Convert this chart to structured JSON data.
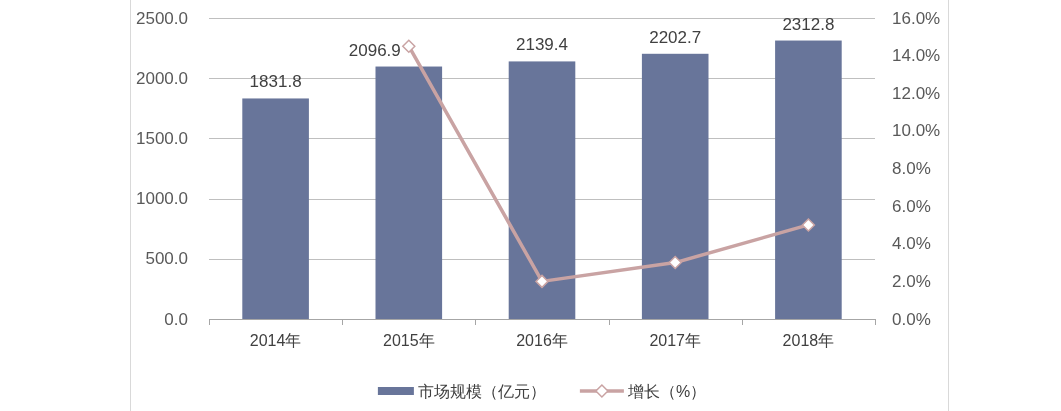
{
  "chart_data": {
    "type": "bar",
    "categories": [
      "2014年",
      "2015年",
      "2016年",
      "2017年",
      "2018年"
    ],
    "series": [
      {
        "name": "市场规模（亿元）",
        "color": "#68759a",
        "values": [
          1831.8,
          2096.9,
          2139.4,
          2202.7,
          2312.8
        ],
        "value_labels": [
          "1831.8",
          "2096.9",
          "2139.4",
          "2202.7",
          "2312.8"
        ]
      },
      {
        "name": "增长（%）",
        "type": "line",
        "axis": "y2",
        "color": "#c9a3a3",
        "marker": "diamond",
        "values": [
          null,
          14.5,
          2.0,
          3.0,
          5.0
        ]
      }
    ],
    "ylim": [
      0,
      2500
    ],
    "yticks": [
      {
        "value": 0,
        "label": "0.0"
      },
      {
        "value": 500,
        "label": "500.0"
      },
      {
        "value": 1000,
        "label": "1000.0"
      },
      {
        "value": 1500,
        "label": "1500.0"
      },
      {
        "value": 2000,
        "label": "2000.0"
      },
      {
        "value": 2500,
        "label": "2500.0"
      }
    ],
    "y2lim": [
      0,
      16
    ],
    "y2ticks": [
      {
        "value": 0,
        "label": "0.0%"
      },
      {
        "value": 2,
        "label": "2.0%"
      },
      {
        "value": 4,
        "label": "4.0%"
      },
      {
        "value": 6,
        "label": "6.0%"
      },
      {
        "value": 8,
        "label": "8.0%"
      },
      {
        "value": 10,
        "label": "10.0%"
      },
      {
        "value": 12,
        "label": "12.0%"
      },
      {
        "value": 14,
        "label": "14.0%"
      },
      {
        "value": 16,
        "label": "16.0%"
      }
    ],
    "grid": "y",
    "legend": "bottom"
  }
}
